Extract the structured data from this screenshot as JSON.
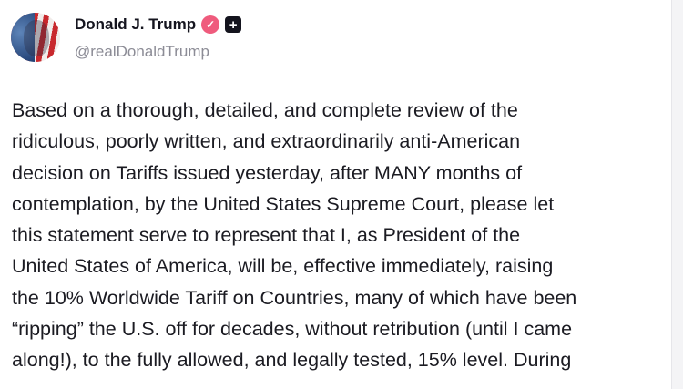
{
  "author": {
    "name": "Donald J. Trump",
    "handle": "@realDonaldTrump",
    "verified_icon": "verified-badge-icon",
    "verified_color": "#ef5b7d",
    "extra_icon": "plus-badge-icon"
  },
  "post": {
    "text": "Based on a thorough, detailed, and complete review of the\nridiculous, poorly written, and extraordinarily anti-American\ndecision on Tariffs issued yesterday, after MANY months of\ncontemplation, by the United States Supreme Court, please let\nthis statement serve to represent that I, as President of the\nUnited States of America, will be, effective immediately, raising\nthe 10% Worldwide Tariff on Countries, many of which have been\n“ripping” the U.S. off for decades, without retribution (until I came\nalong!), to the fully allowed, and legally tested, 15% level. During"
  }
}
